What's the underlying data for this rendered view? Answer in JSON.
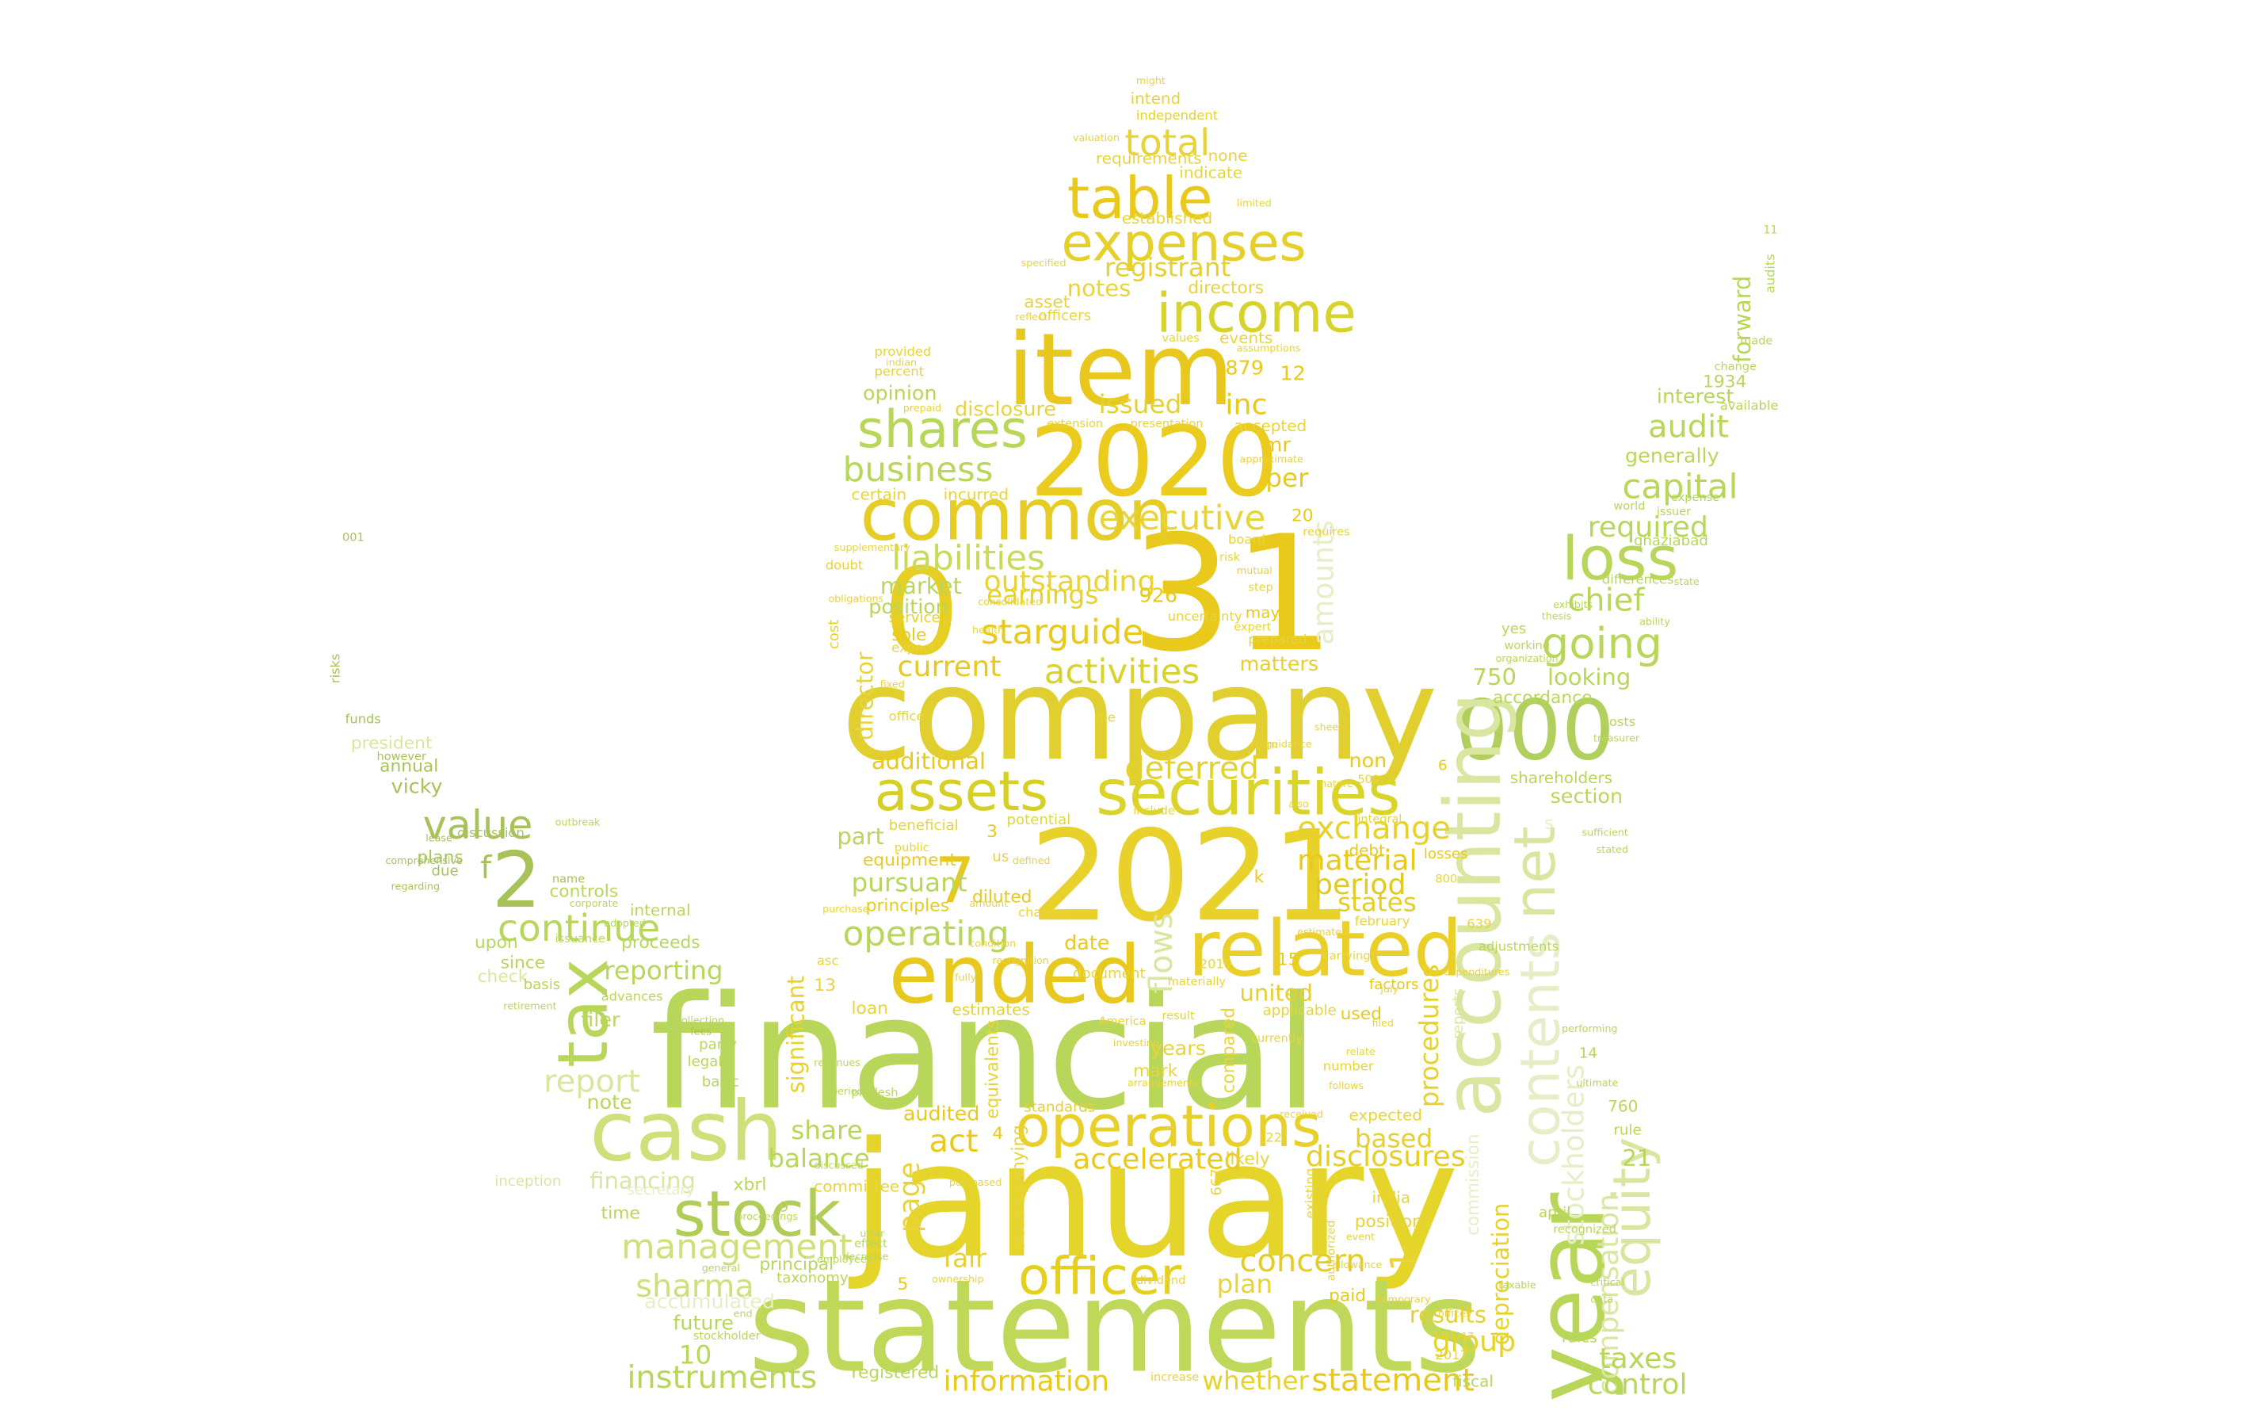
{
  "words": {
    "w1": "financial",
    "w2": "january",
    "w3": "statements",
    "w4": "company",
    "w5": "31",
    "w6": "2021",
    "w7": "2020",
    "w8": "0",
    "w9": "item",
    "w10": "000",
    "w11": "common",
    "w12": "ended",
    "w13": "cash",
    "w14": "related",
    "w15": "year",
    "w16": "accounting",
    "w17": "stock",
    "w18": "operations",
    "w19": "securities",
    "w20": "table",
    "w21": "expenses",
    "w22": "income",
    "w23": "shares",
    "w24": "officer",
    "w25": "assets",
    "w26": "loss",
    "w27": "tax",
    "w28": "net",
    "w29": "2",
    "w30": "7",
    "w31": "contents",
    "w32": "equity",
    "w33": "going",
    "w34": "operating",
    "w35": "business",
    "w36": "liabilities",
    "w37": "executive",
    "w38": "capital",
    "w39": "total",
    "w40": "starguide",
    "w41": "activities",
    "w42": "continue",
    "w43": "value",
    "w44": "management",
    "w45": "information",
    "w46": "instruments",
    "w47": "statement",
    "w48": "audit",
    "w49": "exchange",
    "w50": "concern",
    "w51": "chief",
    "w52": "deferred",
    "w53": "period",
    "w54": "material",
    "w55": "stockholders",
    "w56": "compensation",
    "w57": "outstanding",
    "w58": "disclosures",
    "w59": "group",
    "w60": "taxes",
    "w61": "control",
    "w62": "required",
    "w63": "accelerated",
    "w64": "sharma",
    "w65": "flows",
    "w66": "current",
    "w67": "report",
    "w68": "1",
    "w69": "registrant",
    "w70": "issued",
    "w71": "inc",
    "w72": "earnings",
    "w73": "market",
    "w74": "amounts",
    "w75": "additional",
    "w76": "pursuant",
    "w77": "reporting",
    "w78": "states",
    "w79": "plan",
    "w80": "results",
    "w81": "based",
    "w82": "whether",
    "w83": "balance",
    "w84": "share",
    "w85": "fair",
    "w86": "act",
    "w87": "page",
    "w88": "procedures",
    "w89": "depreciation",
    "w90": "commission",
    "w91": "10",
    "w92": "notes",
    "w93": "looking",
    "w94": "forward",
    "w95": "interest",
    "w96": "generally",
    "w97": "1934",
    "w98": "750",
    "w99": "accordance",
    "w100": "shareholders",
    "w101": "section",
    "w102": "21",
    "w103": "rule",
    "w104": "760",
    "w105": "14",
    "w106": "rules",
    "w107": "fiscal",
    "w108": "paid",
    "w109": "united",
    "w110": "used",
    "w111": "mr",
    "w112": "per",
    "w113": "879",
    "w114": "12",
    "w115": "opinion",
    "w116": "disclosure",
    "w117": "position",
    "w118": "926",
    "w119": "sole",
    "w120": "services",
    "w121": "matters",
    "w122": "may",
    "w123": "director",
    "w124": "part",
    "w125": "date",
    "w126": "loan",
    "w127": "13",
    "w128": "note",
    "w129": "audited",
    "w130": "significant",
    "w131": "vicky",
    "w132": "annual",
    "w133": "plans",
    "w134": "controls",
    "w135": "internal",
    "w136": "proceeds",
    "w137": "since",
    "w138": "upon",
    "w139": "check",
    "w140": "filer",
    "w141": "financing",
    "w142": "time",
    "w143": "principal",
    "w144": "taxonomy",
    "w145": "future",
    "w146": "accumulated",
    "w147": "registered",
    "w148": "xbrl",
    "w149": "equipment",
    "w150": "principles",
    "w151": "diluted",
    "w152": "estimates",
    "w153": "years",
    "w154": "mark",
    "w155": "compared",
    "w156": "likely",
    "w157": "committee",
    "w158": "standards",
    "w159": "accompanying",
    "w160": "equivalents",
    "w161": "positions",
    "w162": "india",
    "w163": "expected",
    "w164": "5",
    "w165": "4",
    "w166": "3",
    "w167": "6",
    "w168": "9",
    "w169": "20",
    "w170": "15",
    "w171": "non",
    "w172": "debt",
    "w173": "losses",
    "w174": "factors",
    "w175": "asset",
    "w176": "directors",
    "w177": "officers",
    "w178": "events",
    "w179": "accepted",
    "w180": "established",
    "w181": "indicate",
    "w182": "none",
    "w183": "requirements",
    "w184": "intend",
    "w185": "independent",
    "w186": "provided",
    "w187": "certain",
    "w188": "incurred",
    "w189": "percent",
    "w190": "doubt",
    "w191": "cost",
    "w192": "expect",
    "w193": "office",
    "w194": "president",
    "w195": "funds",
    "w196": "however",
    "w197": "due",
    "w198": "name",
    "w199": "basis",
    "w200": "party",
    "w201": "legal",
    "w202": "basic",
    "w203": "secretary",
    "w204": "fees",
    "w205": "risks",
    "w206": "001",
    "w207": "discussion",
    "w208": "inception",
    "w209": "reports",
    "w210": "adjustments",
    "w211": "costs",
    "w212": "yes",
    "w213": "working",
    "w214": "differences",
    "w215": "made",
    "w216": "change",
    "w217": "available",
    "w218": "ghaziabad",
    "w219": "audits",
    "w220": "world",
    "w221": "issuer",
    "w222": "expense",
    "w223": "april",
    "w224": "recognized",
    "w225": "2017",
    "w226": "february",
    "w227": "number",
    "w228": "applicable",
    "w229": "document",
    "w230": "beneficial",
    "w231": "potential",
    "w232": "us",
    "w233": "changes",
    "w234": "public",
    "w235": "currently",
    "w236": "include",
    "w237": "result",
    "w238": "existing",
    "w239": "authorized",
    "w240": "increase",
    "w241": "prepared",
    "w242": "expert",
    "w243": "uncertainty",
    "w244": "board",
    "w245": "risk",
    "w246": "requires",
    "w247": "approximate",
    "w248": "presentation",
    "w249": "extension",
    "w250": "assumptions",
    "w251": "values",
    "w252": "reflect",
    "w253": "prepaid",
    "w254": "indian",
    "w255": "uttar",
    "w256": "pradesh",
    "w257": "outbreak",
    "w258": "America",
    "w259": "advances",
    "w260": "issuance",
    "w261": "materially",
    "w262": "arrangements",
    "w263": "carrying",
    "w264": "integral",
    "w265": "form",
    "w266": "file",
    "w267": "condition",
    "w268": "amount",
    "w269": "defined",
    "w270": "purchase",
    "w271": "dividend",
    "w272": "effect",
    "w273": "decrease",
    "w274": "ownership",
    "w275": "general",
    "w276": "stockholder",
    "w277": "end",
    "w278": "f",
    "w279": "k",
    "w280": "s",
    "w281": "22",
    "w282": "17",
    "w283": "639",
    "w284": "800",
    "w285": "500",
    "w286": "667",
    "w287": "11",
    "w288": "2019",
    "w289": "critical",
    "w290": "data",
    "w291": "copic",
    "w292": "offices",
    "w293": "step",
    "w294": "mutual",
    "w295": "limited",
    "w296": "valuation",
    "w297": "might",
    "w298": "specified",
    "w299": "employees",
    "w300": "supplementary",
    "w301": "obligations",
    "w302": "ability",
    "w303": "state",
    "w304": "treasurer",
    "w305": "sufficient",
    "w306": "stated",
    "w307": "exhibits",
    "w308": "organization",
    "w309": "thesis",
    "w310": "corporate",
    "w311": "retirement",
    "w312": "adopted",
    "w313": "proceedings",
    "w314": "collection",
    "w315": "ultimate",
    "w316": "taxable",
    "w317": "allowance",
    "w318": "relate",
    "w319": "filed",
    "w320": "july",
    "w321": "follows",
    "w322": "received",
    "w323": "temporary",
    "w324": "event",
    "w325": "fixed",
    "w326": "investing",
    "w327": "purchased",
    "w328": "discussed",
    "w329": "periods",
    "w330": "revenues",
    "w331": "fully",
    "w332": "recognition",
    "w333": "guidance",
    "w334": "sheets",
    "w335": "nature",
    "w336": "also",
    "w337": "estimated",
    "w338": "expenditures",
    "w339": "health",
    "w340": "consolidated",
    "w341": "performing",
    "w342": "regarding",
    "w343": "comprehensive",
    "w344": "lease",
    "w345": "asc"
  },
  "colors": {
    "gold": "#e8c91c",
    "yellow": "#dcd030",
    "lime": "#b8d65a",
    "olive": "#a8c25a",
    "pale": "#d9e6a0",
    "faint": "#e6eec8"
  }
}
